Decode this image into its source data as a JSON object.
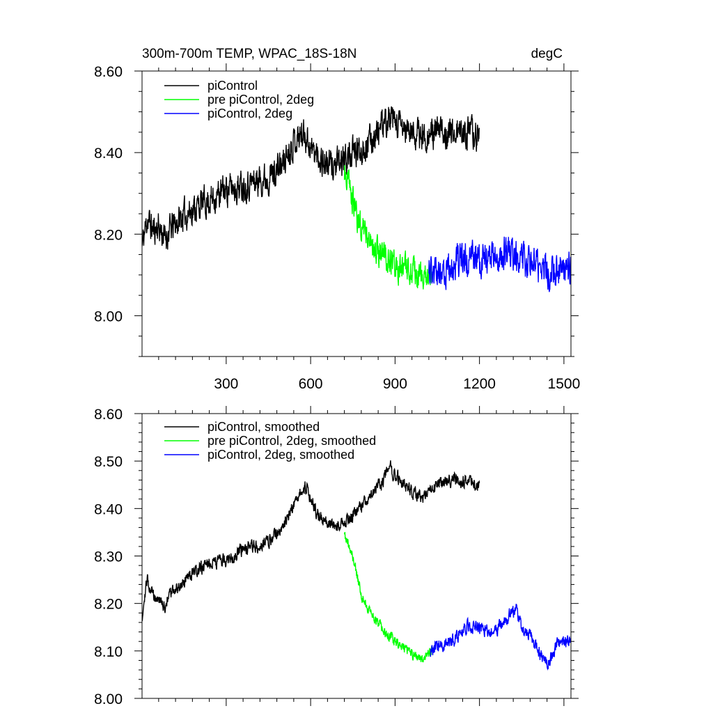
{
  "chart_data": [
    {
      "type": "line",
      "title": "300m-700m TEMP, WPAC_18S-18N",
      "units": "degC",
      "xlim": [
        1,
        1525
      ],
      "ylim": [
        7.9,
        8.6
      ],
      "xticks": [
        300,
        600,
        900,
        1200,
        1500
      ],
      "yticks": [
        8.0,
        8.2,
        8.4,
        8.6
      ],
      "ytick_labels": [
        "8.00",
        "8.20",
        "8.40",
        "8.60"
      ],
      "legend": "top-left",
      "series": [
        {
          "name": "piControl",
          "color": "#000000",
          "noise": 0.032,
          "x": [
            1,
            20,
            40,
            60,
            80,
            100,
            140,
            200,
            260,
            300,
            360,
            400,
            450,
            500,
            540,
            580,
            600,
            630,
            660,
            700,
            730,
            760,
            800,
            850,
            880,
            900,
            950,
            1000,
            1050,
            1100,
            1150,
            1200
          ],
          "y": [
            8.17,
            8.24,
            8.21,
            8.22,
            8.19,
            8.21,
            8.24,
            8.27,
            8.29,
            8.31,
            8.32,
            8.33,
            8.34,
            8.37,
            8.43,
            8.45,
            8.41,
            8.39,
            8.37,
            8.37,
            8.39,
            8.4,
            8.42,
            8.46,
            8.48,
            8.47,
            8.45,
            8.44,
            8.45,
            8.45,
            8.45,
            8.44
          ]
        },
        {
          "name": "pre piControl, 2deg",
          "color": "#00ff00",
          "noise": 0.03,
          "x": [
            720,
            740,
            760,
            790,
            820,
            860,
            900,
            950,
            1000,
            1030
          ],
          "y": [
            8.36,
            8.31,
            8.25,
            8.21,
            8.17,
            8.15,
            8.12,
            8.11,
            8.09,
            8.11
          ]
        },
        {
          "name": "piControl, 2deg",
          "color": "#0000ff",
          "noise": 0.035,
          "x": [
            1020,
            1060,
            1100,
            1150,
            1200,
            1250,
            1300,
            1350,
            1400,
            1450,
            1500,
            1525
          ],
          "y": [
            8.1,
            8.11,
            8.12,
            8.14,
            8.14,
            8.14,
            8.16,
            8.14,
            8.12,
            8.11,
            8.12,
            8.11
          ]
        }
      ]
    },
    {
      "type": "line",
      "title": "",
      "xlim": [
        1,
        1525
      ],
      "ylim": [
        8.0,
        8.6
      ],
      "xticks": [
        300,
        600,
        900,
        1200,
        1500
      ],
      "yticks": [
        8.0,
        8.1,
        8.2,
        8.3,
        8.4,
        8.5,
        8.6
      ],
      "ytick_labels": [
        "8.00",
        "8.10",
        "8.20",
        "8.30",
        "8.40",
        "8.50",
        "8.60"
      ],
      "legend": "top-left",
      "series": [
        {
          "name": "piControl, smoothed",
          "color": "#000000",
          "noise": 0.012,
          "x": [
            1,
            10,
            20,
            40,
            60,
            80,
            100,
            140,
            200,
            250,
            300,
            350,
            400,
            450,
            500,
            540,
            580,
            600,
            630,
            660,
            700,
            720,
            760,
            800,
            850,
            880,
            900,
            950,
            1000,
            1050,
            1100,
            1150,
            1200
          ],
          "y": [
            8.17,
            8.22,
            8.25,
            8.22,
            8.21,
            8.19,
            8.22,
            8.24,
            8.27,
            8.29,
            8.29,
            8.31,
            8.32,
            8.33,
            8.36,
            8.41,
            8.45,
            8.42,
            8.38,
            8.37,
            8.36,
            8.37,
            8.39,
            8.42,
            8.45,
            8.49,
            8.47,
            8.44,
            8.42,
            8.45,
            8.46,
            8.46,
            8.45
          ]
        },
        {
          "name": "pre piControl, 2deg, smoothed",
          "color": "#00ff00",
          "noise": 0.01,
          "x": [
            720,
            740,
            760,
            780,
            800,
            830,
            860,
            900,
            950,
            1000,
            1030
          ],
          "y": [
            8.34,
            8.32,
            8.27,
            8.22,
            8.19,
            8.17,
            8.14,
            8.12,
            8.1,
            8.08,
            8.1
          ]
        },
        {
          "name": "piControl, 2deg, smoothed",
          "color": "#0000ff",
          "noise": 0.012,
          "x": [
            1025,
            1060,
            1100,
            1150,
            1200,
            1250,
            1300,
            1330,
            1350,
            1400,
            1440,
            1480,
            1525
          ],
          "y": [
            8.1,
            8.11,
            8.12,
            8.15,
            8.15,
            8.14,
            8.17,
            8.19,
            8.15,
            8.11,
            8.07,
            8.12,
            8.12
          ]
        }
      ]
    }
  ]
}
